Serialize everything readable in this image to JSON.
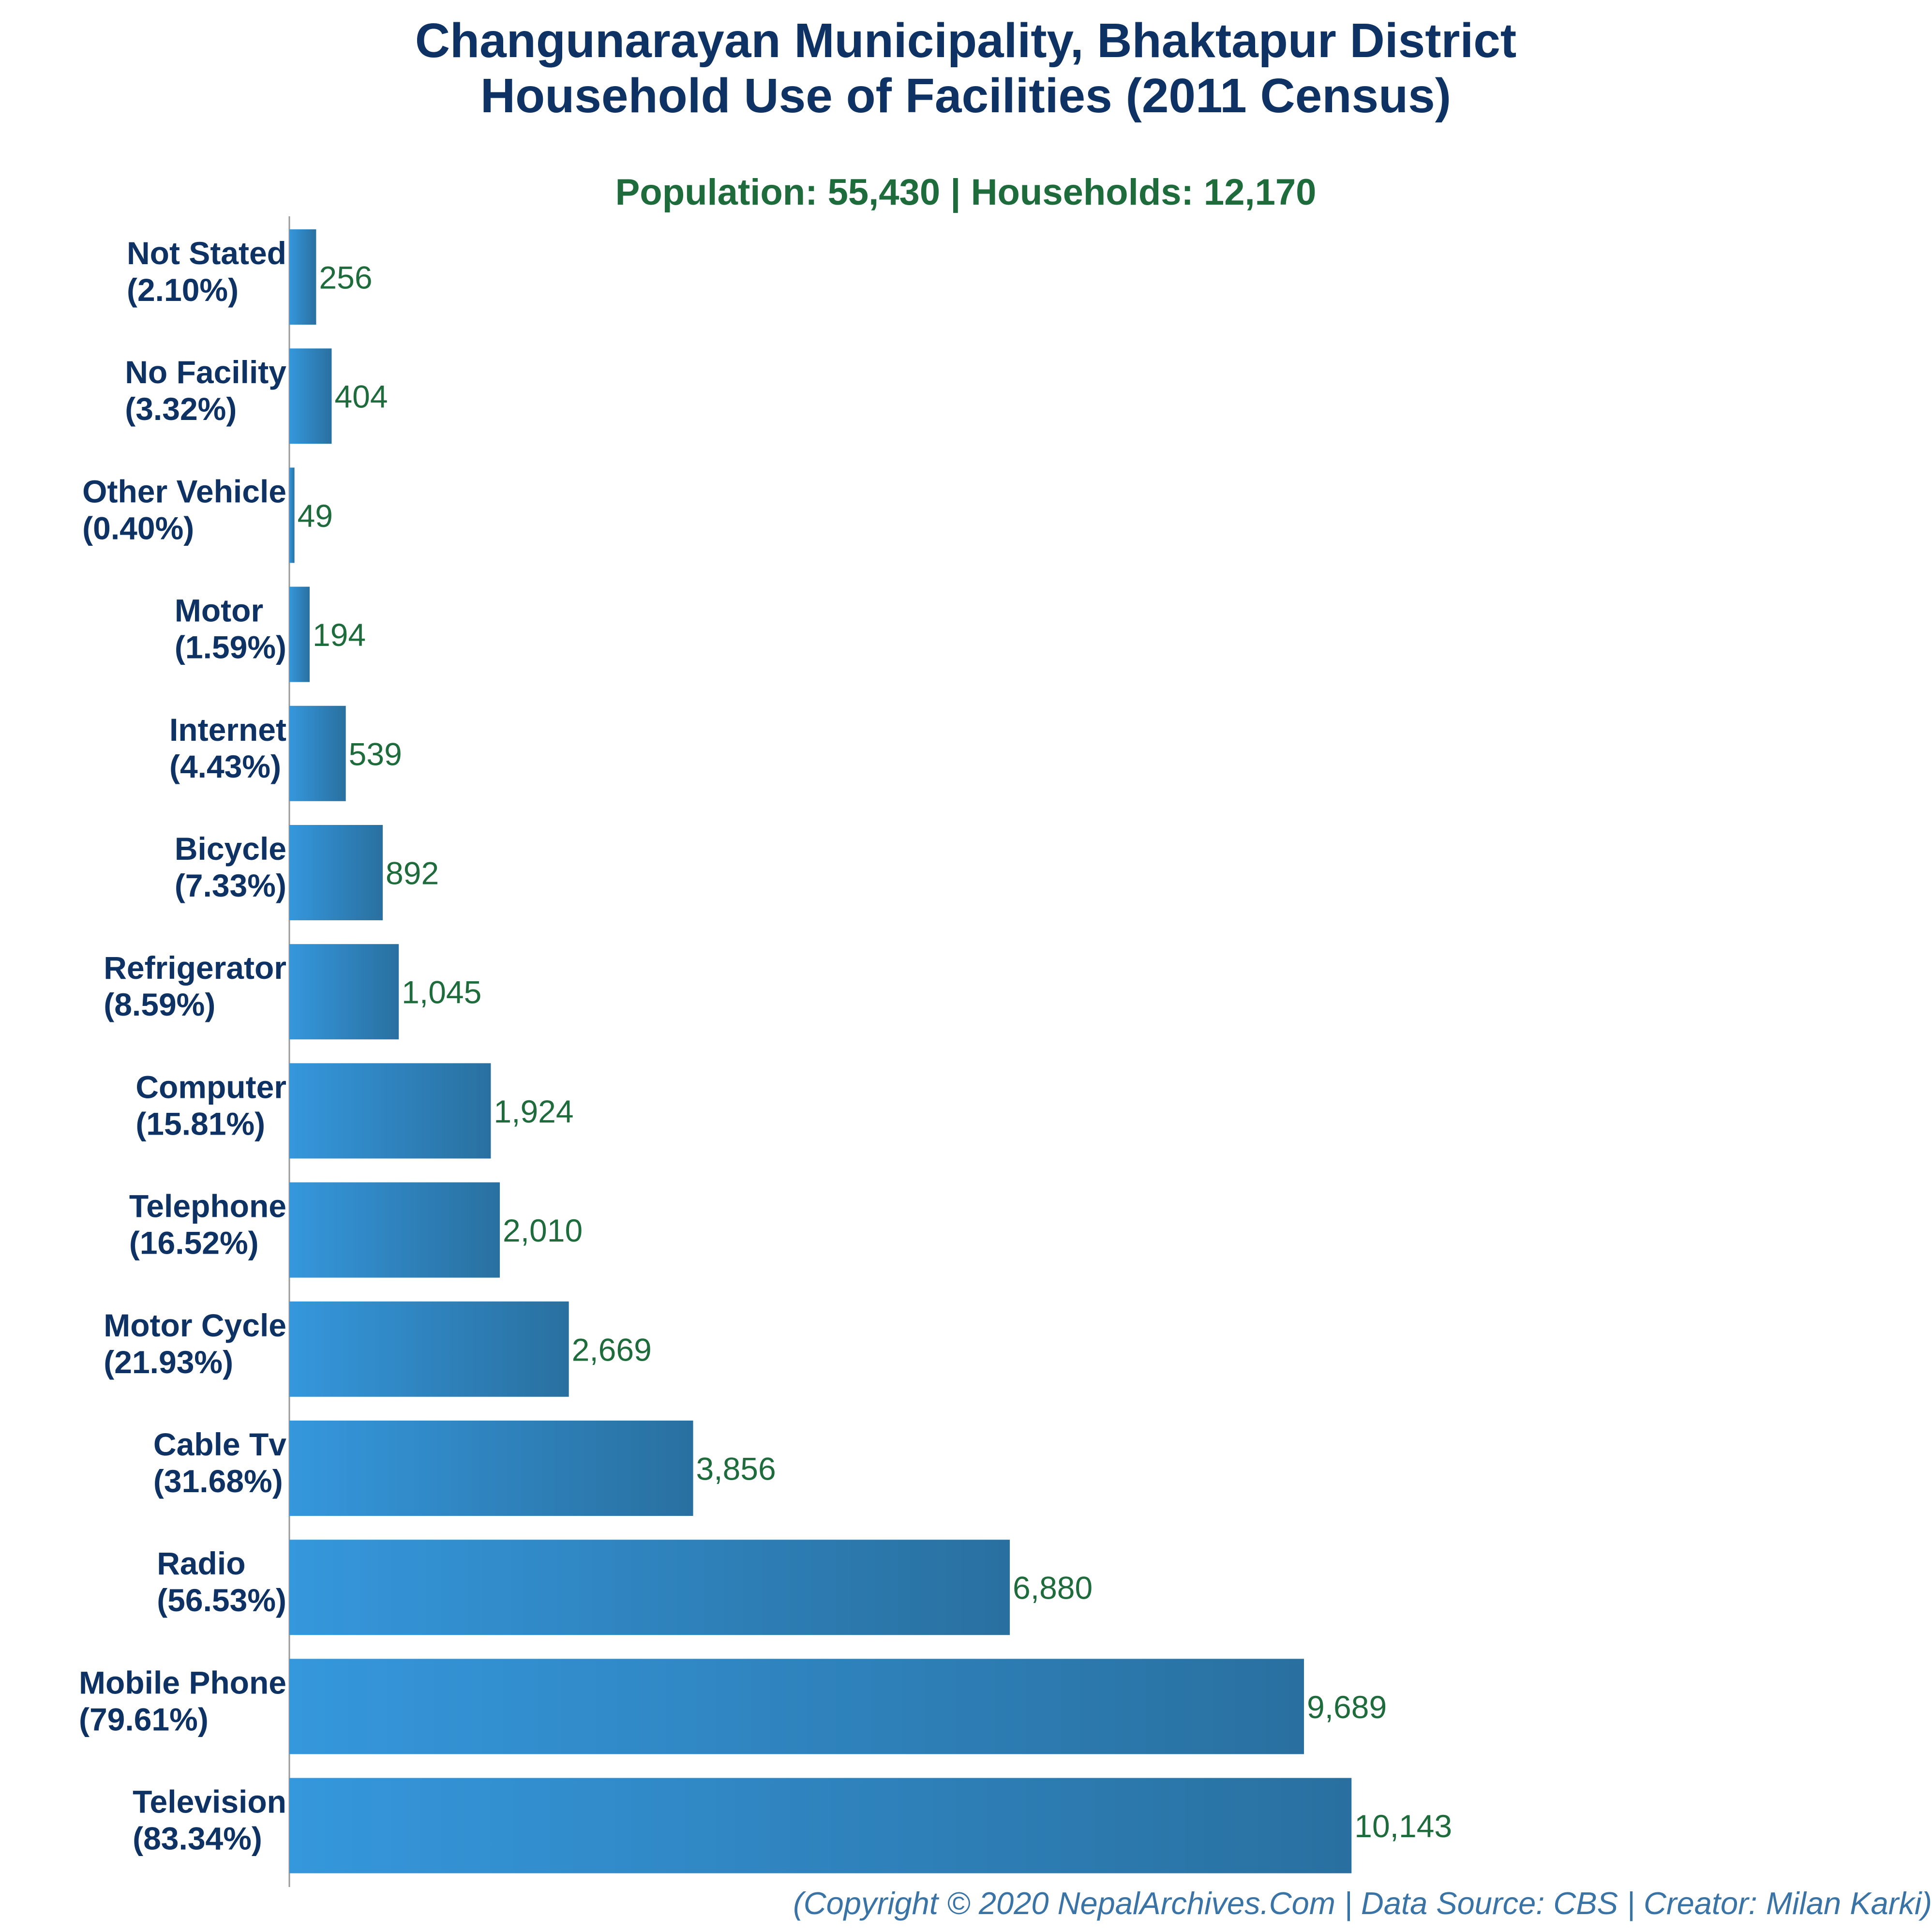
{
  "chart_data": {
    "type": "bar",
    "orientation": "horizontal",
    "title": "Changunarayan Municipality, Bhaktapur District",
    "title_line2": "Household Use of Facilities (2011 Census)",
    "subtitle": "Population: 55,430 | Households: 12,170",
    "categories": [
      "Not Stated",
      "No Facility",
      "Other Vehicle",
      "Motor",
      "Internet",
      "Bicycle",
      "Refrigerator",
      "Computer",
      "Telephone",
      "Motor Cycle",
      "Cable Tv",
      "Radio",
      "Mobile Phone",
      "Television"
    ],
    "percent_labels": [
      "(2.10%)",
      "(3.32%)",
      "(0.40%)",
      "(1.59%)",
      "(4.43%)",
      "(7.33%)",
      "(8.59%)",
      "(15.81%)",
      "(16.52%)",
      "(21.93%)",
      "(31.68%)",
      "(56.53%)",
      "(79.61%)",
      "(83.34%)"
    ],
    "values": [
      256,
      404,
      49,
      194,
      539,
      892,
      1045,
      1924,
      2010,
      2669,
      3856,
      6880,
      9689,
      10143
    ],
    "value_labels": [
      "256",
      "404",
      "49",
      "194",
      "539",
      "892",
      "1,045",
      "1,924",
      "2,010",
      "2,669",
      "3,856",
      "6,880",
      "9,689",
      "10,143"
    ],
    "xlim": [
      0,
      15580
    ],
    "grid": false,
    "legend": "none",
    "colors": {
      "bar_start": "#3597dc",
      "bar_end": "#2970a0",
      "title": "#0d3263",
      "subtitle": "#1e6b3c",
      "value_label": "#1e6b3c",
      "footer": "#3a73a5",
      "axis": "#999999"
    }
  },
  "footer": "(Copyright © 2020 NepalArchives.Com | Data Source: CBS | Creator: Milan Karki)"
}
